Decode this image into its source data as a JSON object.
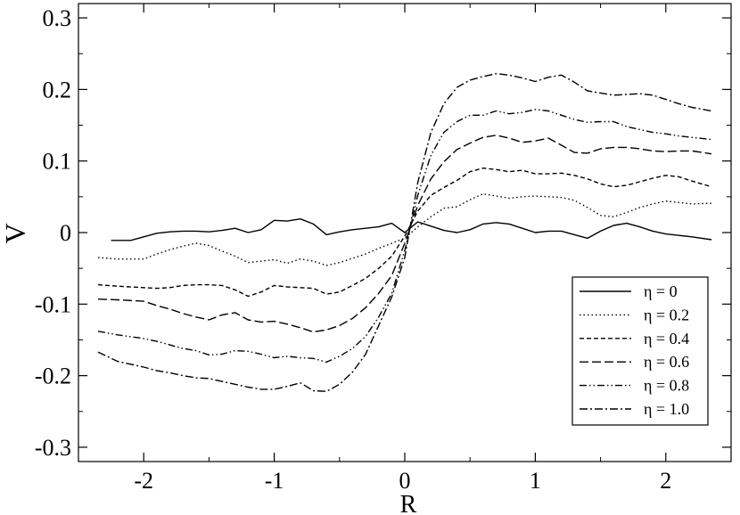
{
  "chart_data": {
    "type": "line",
    "title": "",
    "xlabel": "R",
    "ylabel": "V",
    "xlim": [
      -2.5,
      2.5
    ],
    "ylim": [
      -0.32,
      0.32
    ],
    "xticks": [
      -2,
      -1,
      0,
      1,
      2
    ],
    "xtick_labels": [
      "-2",
      "-1",
      "0",
      "1",
      "2"
    ],
    "yticks": [
      -0.3,
      -0.2,
      -0.1,
      0,
      0.1,
      0.2,
      0.3
    ],
    "ytick_labels": [
      "-0.3",
      "-0.2",
      "-0.1",
      "0",
      "0.1",
      "0.2",
      "0.3"
    ],
    "grid": false,
    "legend_position": "bottom-right",
    "series": [
      {
        "name": "η = 0",
        "line_style": "solid",
        "x": [
          -2.25,
          -2.1,
          -2.0,
          -1.9,
          -1.8,
          -1.7,
          -1.6,
          -1.5,
          -1.4,
          -1.3,
          -1.2,
          -1.1,
          -1.0,
          -0.9,
          -0.8,
          -0.7,
          -0.6,
          -0.5,
          -0.4,
          -0.3,
          -0.2,
          -0.1,
          0.0,
          0.1,
          0.2,
          0.3,
          0.4,
          0.5,
          0.6,
          0.7,
          0.8,
          0.9,
          1.0,
          1.1,
          1.2,
          1.3,
          1.4,
          1.5,
          1.6,
          1.7,
          1.8,
          1.9,
          2.0,
          2.1,
          2.2,
          2.35
        ],
        "y": [
          -0.011,
          -0.011,
          -0.006,
          -0.001,
          0.001,
          0.002,
          0.002,
          0.001,
          0.003,
          0.006,
          0.0,
          0.004,
          0.017,
          0.016,
          0.019,
          0.012,
          -0.003,
          0.001,
          0.004,
          0.006,
          0.008,
          0.013,
          0.0,
          0.015,
          0.009,
          0.003,
          0.0,
          0.004,
          0.012,
          0.014,
          0.012,
          0.006,
          0.0,
          0.002,
          0.002,
          -0.003,
          -0.008,
          0.002,
          0.01,
          0.013,
          0.008,
          0.002,
          -0.002,
          -0.004,
          -0.006,
          -0.01
        ]
      },
      {
        "name": "η = 0.2",
        "line_style": "dotted",
        "x": [
          -2.35,
          -2.2,
          -2.0,
          -1.9,
          -1.8,
          -1.7,
          -1.6,
          -1.5,
          -1.4,
          -1.3,
          -1.2,
          -1.1,
          -1.0,
          -0.9,
          -0.8,
          -0.7,
          -0.6,
          -0.5,
          -0.4,
          -0.3,
          -0.2,
          -0.1,
          0.0,
          0.1,
          0.2,
          0.3,
          0.4,
          0.5,
          0.6,
          0.7,
          0.8,
          0.9,
          1.0,
          1.1,
          1.2,
          1.3,
          1.4,
          1.5,
          1.6,
          1.7,
          1.8,
          1.9,
          2.0,
          2.1,
          2.2,
          2.35
        ],
        "y": [
          -0.035,
          -0.037,
          -0.037,
          -0.03,
          -0.024,
          -0.019,
          -0.015,
          -0.018,
          -0.026,
          -0.033,
          -0.042,
          -0.04,
          -0.038,
          -0.043,
          -0.037,
          -0.04,
          -0.046,
          -0.042,
          -0.036,
          -0.03,
          -0.022,
          -0.015,
          -0.008,
          0.008,
          0.022,
          0.034,
          0.036,
          0.046,
          0.054,
          0.051,
          0.048,
          0.05,
          0.051,
          0.05,
          0.049,
          0.045,
          0.035,
          0.024,
          0.022,
          0.028,
          0.035,
          0.04,
          0.044,
          0.042,
          0.04,
          0.041
        ]
      },
      {
        "name": "η = 0.4",
        "line_style": "short-dashed",
        "x": [
          -2.35,
          -2.2,
          -2.0,
          -1.9,
          -1.8,
          -1.7,
          -1.6,
          -1.5,
          -1.4,
          -1.3,
          -1.2,
          -1.1,
          -1.0,
          -0.9,
          -0.8,
          -0.7,
          -0.6,
          -0.5,
          -0.4,
          -0.3,
          -0.2,
          -0.1,
          0.0,
          0.1,
          0.2,
          0.3,
          0.4,
          0.5,
          0.6,
          0.7,
          0.8,
          0.9,
          1.0,
          1.1,
          1.2,
          1.3,
          1.4,
          1.5,
          1.6,
          1.7,
          1.8,
          1.9,
          2.0,
          2.1,
          2.2,
          2.35
        ],
        "y": [
          -0.073,
          -0.075,
          -0.077,
          -0.078,
          -0.077,
          -0.074,
          -0.073,
          -0.073,
          -0.074,
          -0.08,
          -0.089,
          -0.083,
          -0.074,
          -0.076,
          -0.077,
          -0.078,
          -0.086,
          -0.083,
          -0.074,
          -0.064,
          -0.05,
          -0.033,
          -0.005,
          0.03,
          0.052,
          0.063,
          0.073,
          0.085,
          0.09,
          0.088,
          0.085,
          0.087,
          0.082,
          0.082,
          0.083,
          0.08,
          0.075,
          0.068,
          0.064,
          0.066,
          0.071,
          0.076,
          0.08,
          0.078,
          0.072,
          0.064
        ]
      },
      {
        "name": "η = 0.6",
        "line_style": "long-dashed",
        "x": [
          -2.35,
          -2.2,
          -2.0,
          -1.9,
          -1.8,
          -1.7,
          -1.6,
          -1.5,
          -1.4,
          -1.3,
          -1.2,
          -1.1,
          -1.0,
          -0.9,
          -0.8,
          -0.7,
          -0.6,
          -0.5,
          -0.4,
          -0.3,
          -0.2,
          -0.1,
          0.0,
          0.1,
          0.2,
          0.3,
          0.4,
          0.5,
          0.6,
          0.7,
          0.8,
          0.9,
          1.0,
          1.1,
          1.2,
          1.3,
          1.4,
          1.5,
          1.6,
          1.7,
          1.8,
          1.9,
          2.0,
          2.1,
          2.2,
          2.35
        ],
        "y": [
          -0.093,
          -0.094,
          -0.096,
          -0.102,
          -0.107,
          -0.113,
          -0.118,
          -0.122,
          -0.115,
          -0.112,
          -0.122,
          -0.125,
          -0.124,
          -0.128,
          -0.133,
          -0.139,
          -0.136,
          -0.13,
          -0.12,
          -0.105,
          -0.085,
          -0.06,
          -0.015,
          0.038,
          0.075,
          0.099,
          0.116,
          0.125,
          0.133,
          0.136,
          0.132,
          0.126,
          0.128,
          0.132,
          0.122,
          0.112,
          0.111,
          0.117,
          0.119,
          0.119,
          0.117,
          0.114,
          0.113,
          0.114,
          0.114,
          0.11
        ]
      },
      {
        "name": "η = 0.8",
        "line_style": "dash-dot-dot",
        "x": [
          -2.35,
          -2.2,
          -2.0,
          -1.9,
          -1.8,
          -1.7,
          -1.6,
          -1.5,
          -1.4,
          -1.3,
          -1.2,
          -1.1,
          -1.0,
          -0.9,
          -0.8,
          -0.7,
          -0.6,
          -0.5,
          -0.4,
          -0.3,
          -0.2,
          -0.1,
          0.0,
          0.1,
          0.2,
          0.3,
          0.4,
          0.5,
          0.6,
          0.7,
          0.8,
          0.9,
          1.0,
          1.1,
          1.2,
          1.3,
          1.4,
          1.5,
          1.6,
          1.7,
          1.8,
          1.9,
          2.0,
          2.1,
          2.2,
          2.35
        ],
        "y": [
          -0.138,
          -0.143,
          -0.148,
          -0.152,
          -0.157,
          -0.162,
          -0.165,
          -0.171,
          -0.17,
          -0.165,
          -0.166,
          -0.17,
          -0.175,
          -0.173,
          -0.175,
          -0.176,
          -0.181,
          -0.173,
          -0.162,
          -0.145,
          -0.118,
          -0.085,
          -0.025,
          0.052,
          0.108,
          0.14,
          0.155,
          0.164,
          0.164,
          0.17,
          0.166,
          0.168,
          0.172,
          0.17,
          0.164,
          0.158,
          0.154,
          0.155,
          0.155,
          0.148,
          0.144,
          0.14,
          0.138,
          0.135,
          0.133,
          0.13
        ]
      },
      {
        "name": "η = 1.0",
        "line_style": "dash-dot",
        "x": [
          -2.35,
          -2.2,
          -2.0,
          -1.9,
          -1.8,
          -1.7,
          -1.6,
          -1.5,
          -1.4,
          -1.3,
          -1.2,
          -1.1,
          -1.0,
          -0.9,
          -0.8,
          -0.7,
          -0.6,
          -0.5,
          -0.4,
          -0.3,
          -0.2,
          -0.1,
          0.0,
          0.1,
          0.2,
          0.3,
          0.4,
          0.5,
          0.6,
          0.7,
          0.8,
          0.9,
          1.0,
          1.1,
          1.2,
          1.3,
          1.4,
          1.5,
          1.6,
          1.7,
          1.8,
          1.9,
          2.0,
          2.1,
          2.2,
          2.35
        ],
        "y": [
          -0.167,
          -0.18,
          -0.188,
          -0.193,
          -0.196,
          -0.2,
          -0.203,
          -0.204,
          -0.208,
          -0.212,
          -0.216,
          -0.219,
          -0.219,
          -0.215,
          -0.21,
          -0.221,
          -0.222,
          -0.212,
          -0.195,
          -0.17,
          -0.13,
          -0.09,
          -0.035,
          0.07,
          0.14,
          0.18,
          0.203,
          0.213,
          0.218,
          0.222,
          0.22,
          0.216,
          0.211,
          0.217,
          0.22,
          0.21,
          0.198,
          0.195,
          0.192,
          0.193,
          0.194,
          0.192,
          0.186,
          0.18,
          0.175,
          0.17
        ]
      }
    ]
  }
}
